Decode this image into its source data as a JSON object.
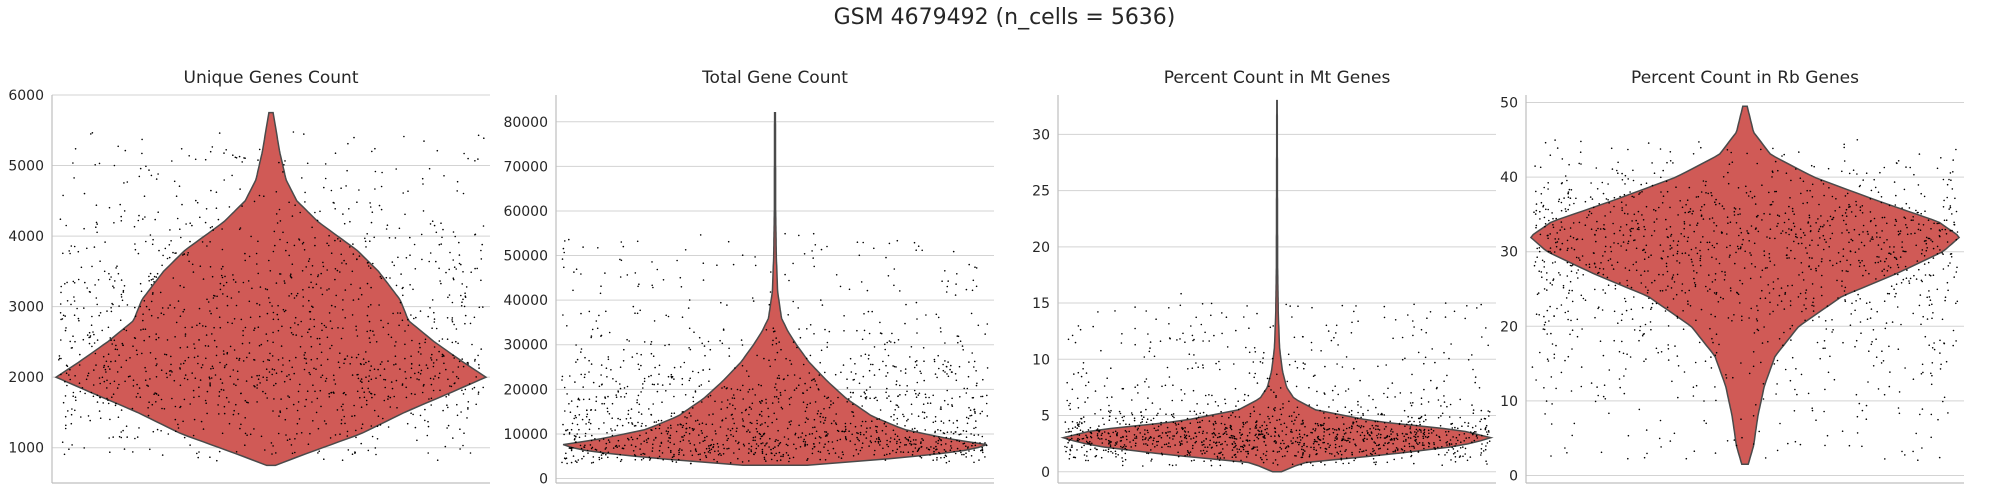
{
  "suptitle": "GSM 4679492 (n_cells = 5636)",
  "colors": {
    "violin_fill": "#D05A56",
    "violin_edge": "#4a4a4a",
    "points": "#000000",
    "grid": "#d3d3d3",
    "spine": "#bfbfbf"
  },
  "chart_data": [
    {
      "type": "violin",
      "title": "Unique Genes Count",
      "ylim": [
        500,
        6000
      ],
      "yticks": [
        1000,
        2000,
        3000,
        4000,
        5000,
        6000
      ],
      "ytick_labels": [
        "1000",
        "2000",
        "3000",
        "4000",
        "5000",
        "6000"
      ],
      "grid": true,
      "range": [
        750,
        5750
      ],
      "points_range": [
        800,
        5500
      ],
      "density": [
        [
          750,
          0.02
        ],
        [
          900,
          0.15
        ],
        [
          1200,
          0.42
        ],
        [
          1500,
          0.62
        ],
        [
          1800,
          0.85
        ],
        [
          2000,
          1.0
        ],
        [
          2200,
          0.9
        ],
        [
          2500,
          0.76
        ],
        [
          2800,
          0.64
        ],
        [
          3100,
          0.6
        ],
        [
          3500,
          0.5
        ],
        [
          3800,
          0.4
        ],
        [
          4200,
          0.22
        ],
        [
          4500,
          0.12
        ],
        [
          4800,
          0.07
        ],
        [
          5200,
          0.04
        ],
        [
          5750,
          0.01
        ]
      ]
    },
    {
      "type": "violin",
      "title": "Total Gene Count",
      "ylim": [
        -1000,
        86000
      ],
      "yticks": [
        0,
        10000,
        20000,
        30000,
        40000,
        50000,
        60000,
        70000,
        80000
      ],
      "ytick_labels": [
        "0",
        "10000",
        "20000",
        "30000",
        "40000",
        "50000",
        "60000",
        "70000",
        "80000"
      ],
      "grid": true,
      "range": [
        3000,
        82000
      ],
      "points_range": [
        3500,
        55000
      ],
      "density": [
        [
          3000,
          0.15
        ],
        [
          4500,
          0.55
        ],
        [
          6000,
          0.85
        ],
        [
          7500,
          1.0
        ],
        [
          9000,
          0.8
        ],
        [
          11000,
          0.6
        ],
        [
          14000,
          0.45
        ],
        [
          18000,
          0.33
        ],
        [
          22000,
          0.24
        ],
        [
          26000,
          0.16
        ],
        [
          30000,
          0.1
        ],
        [
          33000,
          0.06
        ],
        [
          36000,
          0.03
        ],
        [
          42000,
          0.012
        ],
        [
          50000,
          0.006
        ],
        [
          60000,
          0.003
        ],
        [
          82000,
          0.002
        ]
      ]
    },
    {
      "type": "violin",
      "title": "Percent Count in Mt Genes",
      "ylim": [
        -1,
        33.5
      ],
      "yticks": [
        0,
        5,
        10,
        15,
        20,
        25,
        30
      ],
      "ytick_labels": [
        "0",
        "5",
        "10",
        "15",
        "20",
        "25",
        "30"
      ],
      "grid": true,
      "range": [
        0,
        33
      ],
      "points_range": [
        0.5,
        15
      ],
      "density": [
        [
          0,
          0.02
        ],
        [
          0.8,
          0.12
        ],
        [
          1.5,
          0.5
        ],
        [
          2.3,
          0.85
        ],
        [
          3,
          1.0
        ],
        [
          3.7,
          0.85
        ],
        [
          4.5,
          0.45
        ],
        [
          5.5,
          0.18
        ],
        [
          6.5,
          0.08
        ],
        [
          7.5,
          0.045
        ],
        [
          9,
          0.025
        ],
        [
          11,
          0.012
        ],
        [
          14,
          0.006
        ],
        [
          18,
          0.003
        ],
        [
          25,
          0.002
        ],
        [
          33,
          0.001
        ]
      ]
    },
    {
      "type": "violin",
      "title": "Percent Count in Rb Genes",
      "ylim": [
        -1,
        51
      ],
      "yticks": [
        0,
        10,
        20,
        30,
        40,
        50
      ],
      "ytick_labels": [
        "0",
        "10",
        "20",
        "30",
        "40",
        "50"
      ],
      "grid": true,
      "range": [
        1.5,
        49.5
      ],
      "points_range": [
        2,
        45
      ],
      "density": [
        [
          1.5,
          0.015
        ],
        [
          4,
          0.04
        ],
        [
          8,
          0.06
        ],
        [
          12,
          0.09
        ],
        [
          16,
          0.14
        ],
        [
          20,
          0.25
        ],
        [
          24,
          0.45
        ],
        [
          27,
          0.7
        ],
        [
          30,
          0.92
        ],
        [
          32,
          1.0
        ],
        [
          34,
          0.9
        ],
        [
          37,
          0.6
        ],
        [
          40,
          0.32
        ],
        [
          43,
          0.12
        ],
        [
          46,
          0.04
        ],
        [
          49.5,
          0.01
        ]
      ]
    }
  ]
}
